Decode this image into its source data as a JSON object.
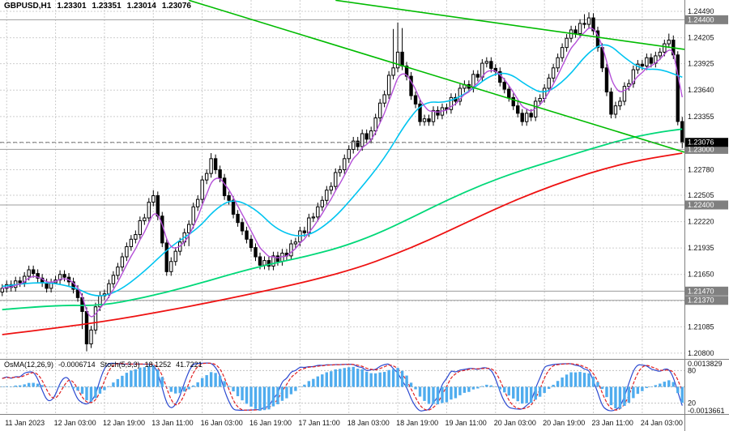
{
  "header": {
    "symbol_timeframe": "GBPUSD,H1",
    "open": "1.23301",
    "high": "1.23351",
    "low": "1.23014",
    "close": "1.23076"
  },
  "indicator_panel": {
    "osma_label": "OsMA(12,26,9)",
    "osma_value": "-0.0006714",
    "stoch_label": "Stoch(5,3,3)",
    "stoch_value_k": "18.1252",
    "stoch_value_d": "41.7221",
    "axis_max": "0.0013829",
    "axis_min": "-0.0013661",
    "level_high": "80",
    "level_low": "20"
  },
  "chart_data": {
    "type": "candlestick",
    "title": "GBPUSD,H1",
    "symbol": "GBPUSD",
    "timeframe": "H1",
    "y_range": [
      1.20738,
      1.24613
    ],
    "y_grid": [
      1.2449,
      1.24205,
      1.23925,
      1.2364,
      1.23355,
      1.2307,
      1.2278,
      1.22505,
      1.2222,
      1.21935,
      1.2165,
      1.21365,
      1.21085,
      1.208
    ],
    "y_ticks": [
      1.2449,
      1.24205,
      1.23925,
      1.2364,
      1.23355,
      1.2278,
      1.22505,
      1.2222,
      1.21935,
      1.2165,
      1.21085,
      1.208
    ],
    "levels": [
      1.244,
      1.23,
      1.224,
      1.2147,
      1.2137
    ],
    "current_price": 1.23076,
    "x_tick_labels": [
      {
        "i": 1,
        "t": "11 Jan 2023"
      },
      {
        "i": 12,
        "t": "12 Jan 03:00"
      },
      {
        "i": 23,
        "t": "12 Jan 19:00"
      },
      {
        "i": 34,
        "t": "13 Jan 11:00"
      },
      {
        "i": 45,
        "t": "16 Jan 03:00"
      },
      {
        "i": 56,
        "t": "16 Jan 19:00"
      },
      {
        "i": 67,
        "t": "17 Jan 11:00"
      },
      {
        "i": 78,
        "t": "18 Jan 03:00"
      },
      {
        "i": 89,
        "t": "18 Jan 19:00"
      },
      {
        "i": 100,
        "t": "19 Jan 11:00"
      },
      {
        "i": 111,
        "t": "20 Jan 03:00"
      },
      {
        "i": 122,
        "t": "20 Jan 19:00"
      },
      {
        "i": 133,
        "t": "23 Jan 11:00"
      },
      {
        "i": 144,
        "t": "24 Jan 03:00"
      }
    ],
    "ohlc": [
      [
        1.2146,
        1.21545,
        1.21415,
        1.215
      ],
      [
        1.215,
        1.21585,
        1.21455,
        1.2154
      ],
      [
        1.2154,
        1.21585,
        1.21465,
        1.2151
      ],
      [
        1.2151,
        1.21625,
        1.21465,
        1.2158
      ],
      [
        1.2158,
        1.21625,
        1.21515,
        1.2156
      ],
      [
        1.2156,
        1.21675,
        1.21515,
        1.2163
      ],
      [
        1.2163,
        1.21745,
        1.21585,
        1.217
      ],
      [
        1.217,
        1.21745,
        1.21615,
        1.2166
      ],
      [
        1.2166,
        1.21705,
        1.21565,
        1.2161
      ],
      [
        1.2161,
        1.21655,
        1.21515,
        1.2156
      ],
      [
        1.2156,
        1.21605,
        1.21455,
        1.215
      ],
      [
        1.215,
        1.21605,
        1.21455,
        1.2156
      ],
      [
        1.2156,
        1.21635,
        1.21545,
        1.2159
      ],
      [
        1.2159,
        1.21695,
        1.21545,
        1.2165
      ],
      [
        1.2165,
        1.21695,
        1.21575,
        1.2162
      ],
      [
        1.2162,
        1.21665,
        1.21525,
        1.2157
      ],
      [
        1.2157,
        1.21615,
        1.21445,
        1.2149
      ],
      [
        1.2149,
        1.21535,
        1.21355,
        1.214
      ],
      [
        1.214,
        1.21445,
        1.2106,
        1.2125
      ],
      [
        1.2125,
        1.21295,
        1.2082,
        1.209
      ],
      [
        1.209,
        1.21095,
        1.20855,
        1.2105
      ],
      [
        1.2105,
        1.21345,
        1.21005,
        1.213
      ],
      [
        1.213,
        1.21465,
        1.21255,
        1.2142
      ],
      [
        1.2142,
        1.21485,
        1.21375,
        1.2144
      ],
      [
        1.2144,
        1.21595,
        1.21395,
        1.2155
      ],
      [
        1.2155,
        1.21685,
        1.21505,
        1.2164
      ],
      [
        1.2164,
        1.21775,
        1.21595,
        1.2173
      ],
      [
        1.2173,
        1.21885,
        1.21685,
        1.2184
      ],
      [
        1.2184,
        1.21995,
        1.21795,
        1.2195
      ],
      [
        1.2195,
        1.22075,
        1.21905,
        1.2203
      ],
      [
        1.2203,
        1.22125,
        1.21985,
        1.2208
      ],
      [
        1.2208,
        1.22275,
        1.22035,
        1.2223
      ],
      [
        1.2223,
        1.22305,
        1.22185,
        1.2226
      ],
      [
        1.2226,
        1.22475,
        1.22215,
        1.2243
      ],
      [
        1.2243,
        1.2256,
        1.22385,
        1.225
      ],
      [
        1.225,
        1.22545,
        1.22235,
        1.2228
      ],
      [
        1.2228,
        1.22325,
        1.21945,
        1.2199
      ],
      [
        1.2199,
        1.22035,
        1.21635,
        1.2168
      ],
      [
        1.2168,
        1.21835,
        1.21635,
        1.2179
      ],
      [
        1.2179,
        1.21945,
        1.21745,
        1.219
      ],
      [
        1.219,
        1.22045,
        1.21855,
        1.22
      ],
      [
        1.22,
        1.22145,
        1.21955,
        1.221
      ],
      [
        1.221,
        1.22235,
        1.21955,
        1.2219
      ],
      [
        1.2219,
        1.22425,
        1.22145,
        1.2238
      ],
      [
        1.2238,
        1.22505,
        1.22335,
        1.2246
      ],
      [
        1.2246,
        1.22715,
        1.22415,
        1.2267
      ],
      [
        1.2267,
        1.22785,
        1.22625,
        1.2274
      ],
      [
        1.2274,
        1.2296,
        1.22695,
        1.229
      ],
      [
        1.229,
        1.22945,
        1.22735,
        1.2278
      ],
      [
        1.2278,
        1.22825,
        1.22645,
        1.2269
      ],
      [
        1.2269,
        1.22735,
        1.22455,
        1.225
      ],
      [
        1.225,
        1.22545,
        1.22405,
        1.2245
      ],
      [
        1.2245,
        1.22495,
        1.22255,
        1.223
      ],
      [
        1.223,
        1.22345,
        1.22165,
        1.2221
      ],
      [
        1.2221,
        1.22255,
        1.22075,
        1.2212
      ],
      [
        1.2212,
        1.22165,
        1.21985,
        1.2203
      ],
      [
        1.2203,
        1.22075,
        1.21895,
        1.2194
      ],
      [
        1.2194,
        1.21985,
        1.21795,
        1.2184
      ],
      [
        1.2184,
        1.21885,
        1.21705,
        1.2175
      ],
      [
        1.2175,
        1.21845,
        1.21705,
        1.218
      ],
      [
        1.218,
        1.21845,
        1.21695,
        1.2174
      ],
      [
        1.2174,
        1.21895,
        1.21695,
        1.2185
      ],
      [
        1.2185,
        1.21895,
        1.21745,
        1.2179
      ],
      [
        1.2179,
        1.21925,
        1.21745,
        1.2188
      ],
      [
        1.2188,
        1.21925,
        1.21805,
        1.2185
      ],
      [
        1.2185,
        1.22025,
        1.21805,
        1.2198
      ],
      [
        1.2198,
        1.22045,
        1.21935,
        1.22
      ],
      [
        1.22,
        1.22165,
        1.21955,
        1.2212
      ],
      [
        1.2212,
        1.22165,
        1.22055,
        1.221
      ],
      [
        1.221,
        1.22305,
        1.22055,
        1.2226
      ],
      [
        1.2226,
        1.22315,
        1.22215,
        1.2227
      ],
      [
        1.2227,
        1.22425,
        1.22225,
        1.2238
      ],
      [
        1.2238,
        1.22495,
        1.22335,
        1.2245
      ],
      [
        1.2245,
        1.22605,
        1.22405,
        1.2256
      ],
      [
        1.2256,
        1.22645,
        1.22515,
        1.226
      ],
      [
        1.226,
        1.22795,
        1.22555,
        1.2275
      ],
      [
        1.2275,
        1.22825,
        1.22705,
        1.2278
      ],
      [
        1.2278,
        1.22945,
        1.22735,
        1.229
      ],
      [
        1.229,
        1.23045,
        1.22855,
        1.23
      ],
      [
        1.23,
        1.23135,
        1.22955,
        1.2309
      ],
      [
        1.2309,
        1.23135,
        1.22985,
        1.2303
      ],
      [
        1.2303,
        1.23215,
        1.22985,
        1.2317
      ],
      [
        1.2317,
        1.23215,
        1.23065,
        1.2311
      ],
      [
        1.2311,
        1.23245,
        1.23065,
        1.232
      ],
      [
        1.232,
        1.23385,
        1.23155,
        1.2334
      ],
      [
        1.2334,
        1.23545,
        1.23295,
        1.235
      ],
      [
        1.235,
        1.23635,
        1.23455,
        1.2359
      ],
      [
        1.2359,
        1.23845,
        1.23545,
        1.238
      ],
      [
        1.238,
        1.243,
        1.23755,
        1.2388
      ],
      [
        1.2388,
        1.2437,
        1.23835,
        1.2405
      ],
      [
        1.2405,
        1.2431,
        1.23855,
        1.239
      ],
      [
        1.239,
        1.23945,
        1.23745,
        1.2379
      ],
      [
        1.2379,
        1.23835,
        1.23535,
        1.2358
      ],
      [
        1.2358,
        1.23625,
        1.23445,
        1.2349
      ],
      [
        1.2349,
        1.23535,
        1.23255,
        1.233
      ],
      [
        1.233,
        1.23375,
        1.23255,
        1.2333
      ],
      [
        1.2333,
        1.23375,
        1.23255,
        1.233
      ],
      [
        1.233,
        1.23465,
        1.23255,
        1.2342
      ],
      [
        1.2342,
        1.23465,
        1.23325,
        1.2337
      ],
      [
        1.2337,
        1.23495,
        1.23325,
        1.2345
      ],
      [
        1.2345,
        1.23495,
        1.23385,
        1.2343
      ],
      [
        1.2343,
        1.23605,
        1.23385,
        1.2356
      ],
      [
        1.2356,
        1.23605,
        1.23475,
        1.2352
      ],
      [
        1.2352,
        1.23705,
        1.23475,
        1.2366
      ],
      [
        1.2366,
        1.23745,
        1.23615,
        1.237
      ],
      [
        1.237,
        1.23745,
        1.23615,
        1.2366
      ],
      [
        1.2366,
        1.23855,
        1.23615,
        1.2381
      ],
      [
        1.2381,
        1.23855,
        1.23735,
        1.2378
      ],
      [
        1.2378,
        1.23975,
        1.23735,
        1.2393
      ],
      [
        1.2393,
        1.23995,
        1.23885,
        1.2395
      ],
      [
        1.2395,
        1.23995,
        1.2383,
        1.23875
      ],
      [
        1.23875,
        1.2392,
        1.23795,
        1.2384
      ],
      [
        1.2384,
        1.23885,
        1.2368,
        1.23725
      ],
      [
        1.23725,
        1.2377,
        1.23605,
        1.2365
      ],
      [
        1.2365,
        1.23695,
        1.23515,
        1.2356
      ],
      [
        1.2356,
        1.23605,
        1.23425,
        1.2347
      ],
      [
        1.2347,
        1.23515,
        1.23345,
        1.2339
      ],
      [
        1.2339,
        1.23435,
        1.23255,
        1.233
      ],
      [
        1.233,
        1.23435,
        1.23255,
        1.2339
      ],
      [
        1.2339,
        1.23435,
        1.23305,
        1.2335
      ],
      [
        1.2335,
        1.23565,
        1.23305,
        1.2352
      ],
      [
        1.2352,
        1.23595,
        1.23475,
        1.2355
      ],
      [
        1.2355,
        1.23705,
        1.23505,
        1.2366
      ],
      [
        1.2366,
        1.23815,
        1.23615,
        1.2377
      ],
      [
        1.2377,
        1.23925,
        1.23725,
        1.2388
      ],
      [
        1.2388,
        1.24035,
        1.23835,
        1.2399
      ],
      [
        1.2399,
        1.24145,
        1.23945,
        1.241
      ],
      [
        1.241,
        1.24245,
        1.24055,
        1.242
      ],
      [
        1.242,
        1.24335,
        1.24155,
        1.2429
      ],
      [
        1.2429,
        1.24335,
        1.24205,
        1.2425
      ],
      [
        1.2425,
        1.24405,
        1.24205,
        1.2436
      ],
      [
        1.2436,
        1.2446,
        1.24305,
        1.2435
      ],
      [
        1.2435,
        1.2448,
        1.24305,
        1.2442
      ],
      [
        1.2442,
        1.2447,
        1.24235,
        1.2428
      ],
      [
        1.2428,
        1.24325,
        1.24055,
        1.241
      ],
      [
        1.241,
        1.24145,
        1.23835,
        1.2388
      ],
      [
        1.2388,
        1.23925,
        1.23575,
        1.2362
      ],
      [
        1.2362,
        1.23665,
        1.23335,
        1.2338
      ],
      [
        1.2338,
        1.23515,
        1.23335,
        1.2347
      ],
      [
        1.2347,
        1.23565,
        1.23425,
        1.2352
      ],
      [
        1.2352,
        1.23725,
        1.23475,
        1.2368
      ],
      [
        1.2368,
        1.23755,
        1.23635,
        1.2371
      ],
      [
        1.2371,
        1.23905,
        1.23665,
        1.2386
      ],
      [
        1.2386,
        1.23965,
        1.23815,
        1.2392
      ],
      [
        1.2392,
        1.23965,
        1.23855,
        1.239
      ],
      [
        1.239,
        1.24035,
        1.23855,
        1.2399
      ],
      [
        1.2399,
        1.24035,
        1.23885,
        1.2393
      ],
      [
        1.2393,
        1.24055,
        1.23885,
        1.2401
      ],
      [
        1.2401,
        1.24095,
        1.23965,
        1.2405
      ],
      [
        1.2405,
        1.24185,
        1.24005,
        1.2414
      ],
      [
        1.2414,
        1.2425,
        1.24095,
        1.2418
      ],
      [
        1.2418,
        1.2423,
        1.23975,
        1.2402
      ],
      [
        1.2402,
        1.2406,
        1.2326,
        1.23301
      ],
      [
        1.23301,
        1.23351,
        1.23014,
        1.23076
      ]
    ],
    "moving_averages": {
      "fast_ema_period": 5,
      "cyan_points": [
        [
          0,
          1.2152
        ],
        [
          8,
          1.2158
        ],
        [
          16,
          1.2152
        ],
        [
          21,
          1.214
        ],
        [
          26,
          1.2146
        ],
        [
          32,
          1.2168
        ],
        [
          38,
          1.2196
        ],
        [
          44,
          1.2214
        ],
        [
          48,
          1.2236
        ],
        [
          52,
          1.2247
        ],
        [
          57,
          1.2236
        ],
        [
          62,
          1.2212
        ],
        [
          68,
          1.2204
        ],
        [
          74,
          1.2222
        ],
        [
          80,
          1.2254
        ],
        [
          86,
          1.229
        ],
        [
          91,
          1.233
        ],
        [
          95,
          1.2352
        ],
        [
          100,
          1.235
        ],
        [
          105,
          1.2362
        ],
        [
          110,
          1.2381
        ],
        [
          114,
          1.2383
        ],
        [
          118,
          1.2369
        ],
        [
          122,
          1.2359
        ],
        [
          127,
          1.2376
        ],
        [
          132,
          1.2406
        ],
        [
          136,
          1.2416
        ],
        [
          140,
          1.2399
        ],
        [
          144,
          1.2386
        ],
        [
          148,
          1.2387
        ],
        [
          153,
          1.2378
        ]
      ],
      "green_points": [
        [
          0,
          1.2127
        ],
        [
          12,
          1.2132
        ],
        [
          22,
          1.2131
        ],
        [
          32,
          1.214
        ],
        [
          42,
          1.2152
        ],
        [
          52,
          1.2166
        ],
        [
          60,
          1.2176
        ],
        [
          68,
          1.2184
        ],
        [
          76,
          1.2194
        ],
        [
          84,
          1.2208
        ],
        [
          92,
          1.2226
        ],
        [
          100,
          1.2245
        ],
        [
          108,
          1.2262
        ],
        [
          116,
          1.2276
        ],
        [
          124,
          1.2288
        ],
        [
          132,
          1.23
        ],
        [
          140,
          1.2311
        ],
        [
          147,
          1.2318
        ],
        [
          153,
          1.2322
        ]
      ],
      "red_points": [
        [
          0,
          1.21
        ],
        [
          12,
          1.2107
        ],
        [
          24,
          1.2115
        ],
        [
          36,
          1.2125
        ],
        [
          48,
          1.2136
        ],
        [
          60,
          1.2148
        ],
        [
          70,
          1.2159
        ],
        [
          80,
          1.2172
        ],
        [
          88,
          1.2186
        ],
        [
          96,
          1.2202
        ],
        [
          104,
          1.222
        ],
        [
          112,
          1.2238
        ],
        [
          120,
          1.2254
        ],
        [
          128,
          1.2268
        ],
        [
          136,
          1.228
        ],
        [
          144,
          1.2289
        ],
        [
          153,
          1.2296
        ]
      ]
    },
    "trendlines": [
      {
        "i1": 42,
        "p1": 1.2461,
        "i2": 153.5,
        "p2": 1.2297
      },
      {
        "i1": 75,
        "p1": 1.2461,
        "i2": 153.5,
        "p2": 1.2408
      }
    ],
    "indicators": {
      "osma": {
        "fast": 12,
        "slow": 26,
        "signal": 9
      },
      "stochastic": {
        "k": 5,
        "d": 3,
        "slowing": 3,
        "levels": [
          80,
          20
        ]
      }
    },
    "colors": {
      "background": "#FFFFFF",
      "grid": "#CDCDCD",
      "level_line": "#9C9C9C",
      "level_tag_bg": "#808080",
      "current_tag_bg": "#000000",
      "candle_up_fill": "#FFFFFF",
      "candle_down_fill": "#000000",
      "candle_outline": "#000000",
      "ma_fast": "#B44FD8",
      "ma_cyan": "#00C4F0",
      "ma_green": "#00D878",
      "ma_red": "#EE1111",
      "trendline": "#00BB00",
      "osma_bar": "#4FACEE",
      "stoch_k": "#2B48D0",
      "stoch_d": "#E02020",
      "axis_text": "#111111"
    }
  }
}
